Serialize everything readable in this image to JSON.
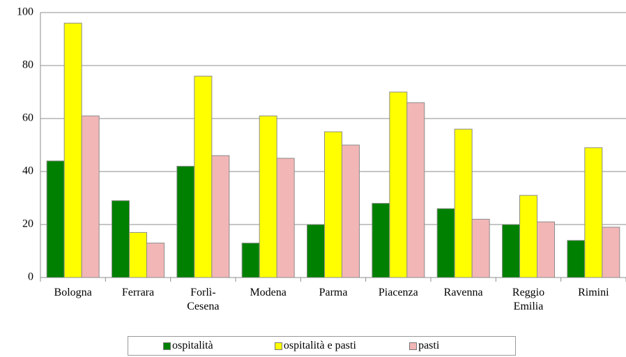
{
  "chart_data": {
    "type": "bar",
    "categories": [
      "Bologna",
      "Ferrara",
      "Forlì-Cesena",
      "Modena",
      "Parma",
      "Piacenza",
      "Ravenna",
      "Reggio Emilia",
      "Rimini"
    ],
    "series": [
      {
        "name": "ospitalità",
        "color": "#008000",
        "values": [
          44,
          29,
          42,
          13,
          20,
          28,
          26,
          20,
          14
        ]
      },
      {
        "name": "ospitalità e pasti",
        "color": "#ffff00",
        "values": [
          96,
          17,
          76,
          61,
          55,
          70,
          56,
          31,
          49
        ]
      },
      {
        "name": "pasti",
        "color": "#f2b6b6",
        "values": [
          61,
          13,
          46,
          45,
          50,
          66,
          22,
          21,
          19
        ]
      }
    ],
    "ylim": [
      0,
      100
    ],
    "yticks": [
      0,
      20,
      40,
      60,
      80,
      100
    ],
    "grid": true,
    "legend": "bottom"
  }
}
